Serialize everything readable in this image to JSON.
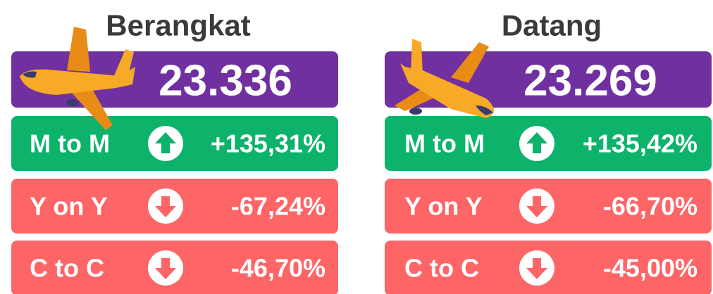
{
  "panels": [
    {
      "title": "Berangkat",
      "total": "23.336",
      "rows": [
        {
          "label": "M to M",
          "value": "+135,31%",
          "color": "#0db26b",
          "arrow": "up"
        },
        {
          "label": "Y on Y",
          "value": "-67,24%",
          "color": "#fd6566",
          "arrow": "down"
        },
        {
          "label": "C to C",
          "value": "-46,70%",
          "color": "#fd6566",
          "arrow": "down"
        }
      ]
    },
    {
      "title": "Datang",
      "total": "23.269",
      "rows": [
        {
          "label": "M to M",
          "value": "+135,42%",
          "color": "#0db26b",
          "arrow": "up"
        },
        {
          "label": "Y on Y",
          "value": "-66,70%",
          "color": "#fd6566",
          "arrow": "down"
        },
        {
          "label": "C to C",
          "value": "-45,00%",
          "color": "#fd6566",
          "arrow": "down"
        }
      ]
    }
  ]
}
